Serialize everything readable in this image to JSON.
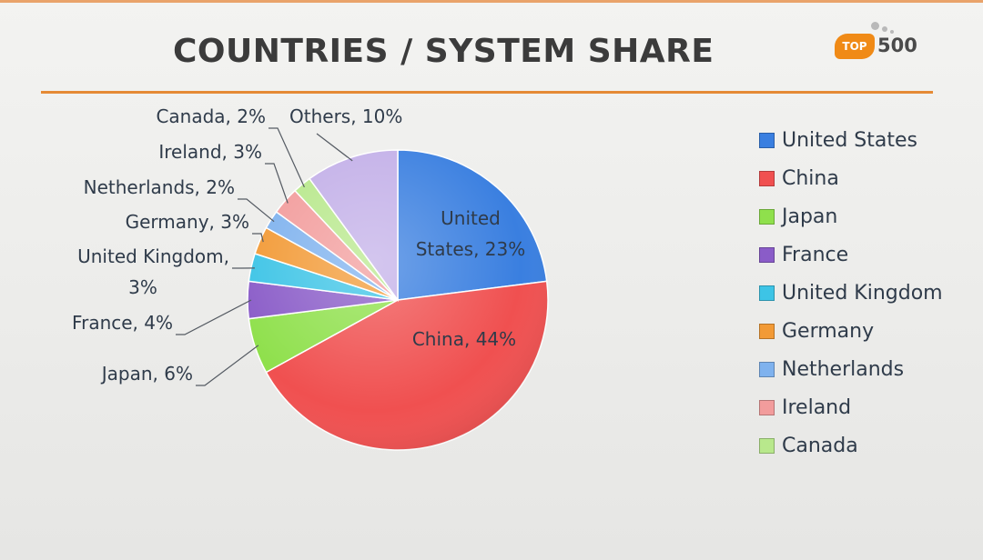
{
  "header": {
    "title": "COUNTRIES / SYSTEM SHARE",
    "logo_badge": "TOP",
    "logo_number": "500"
  },
  "colors": {
    "accent_rule": "#e58a35",
    "logo_orange": "#f08a16"
  },
  "chart_data": {
    "type": "pie",
    "title": "COUNTRIES / SYSTEM SHARE",
    "legend_position": "right",
    "slices": [
      {
        "name": "United States",
        "value": 23,
        "color": "#3a7fe0",
        "label": [
          "United",
          "States, 23%"
        ]
      },
      {
        "name": "China",
        "value": 44,
        "color": "#f05050",
        "label": [
          "China, 44%"
        ]
      },
      {
        "name": "Japan",
        "value": 6,
        "color": "#8fe04c",
        "label": [
          "Japan, 6%"
        ]
      },
      {
        "name": "France",
        "value": 4,
        "color": "#8a5cc8",
        "label": [
          "France, 4%"
        ]
      },
      {
        "name": "United Kingdom",
        "value": 3,
        "color": "#3dc4e6",
        "label": [
          "United Kingdom,",
          "3%"
        ]
      },
      {
        "name": "Germany",
        "value": 3,
        "color": "#f29a36",
        "label": [
          "Germany, 3%"
        ]
      },
      {
        "name": "Netherlands",
        "value": 2,
        "color": "#7fb2ee",
        "label": [
          "Netherlands, 2%"
        ]
      },
      {
        "name": "Ireland",
        "value": 3,
        "color": "#f29c9c",
        "label": [
          "Ireland, 3%"
        ]
      },
      {
        "name": "Canada",
        "value": 2,
        "color": "#b8e88c",
        "label": [
          "Canada, 2%"
        ]
      },
      {
        "name": "Others",
        "value": 10,
        "color": "#c3b0e8",
        "label": [
          "Others, 10%"
        ]
      }
    ],
    "legend": [
      "United States",
      "China",
      "Japan",
      "France",
      "United Kingdom",
      "Germany",
      "Netherlands",
      "Ireland",
      "Canada"
    ]
  }
}
